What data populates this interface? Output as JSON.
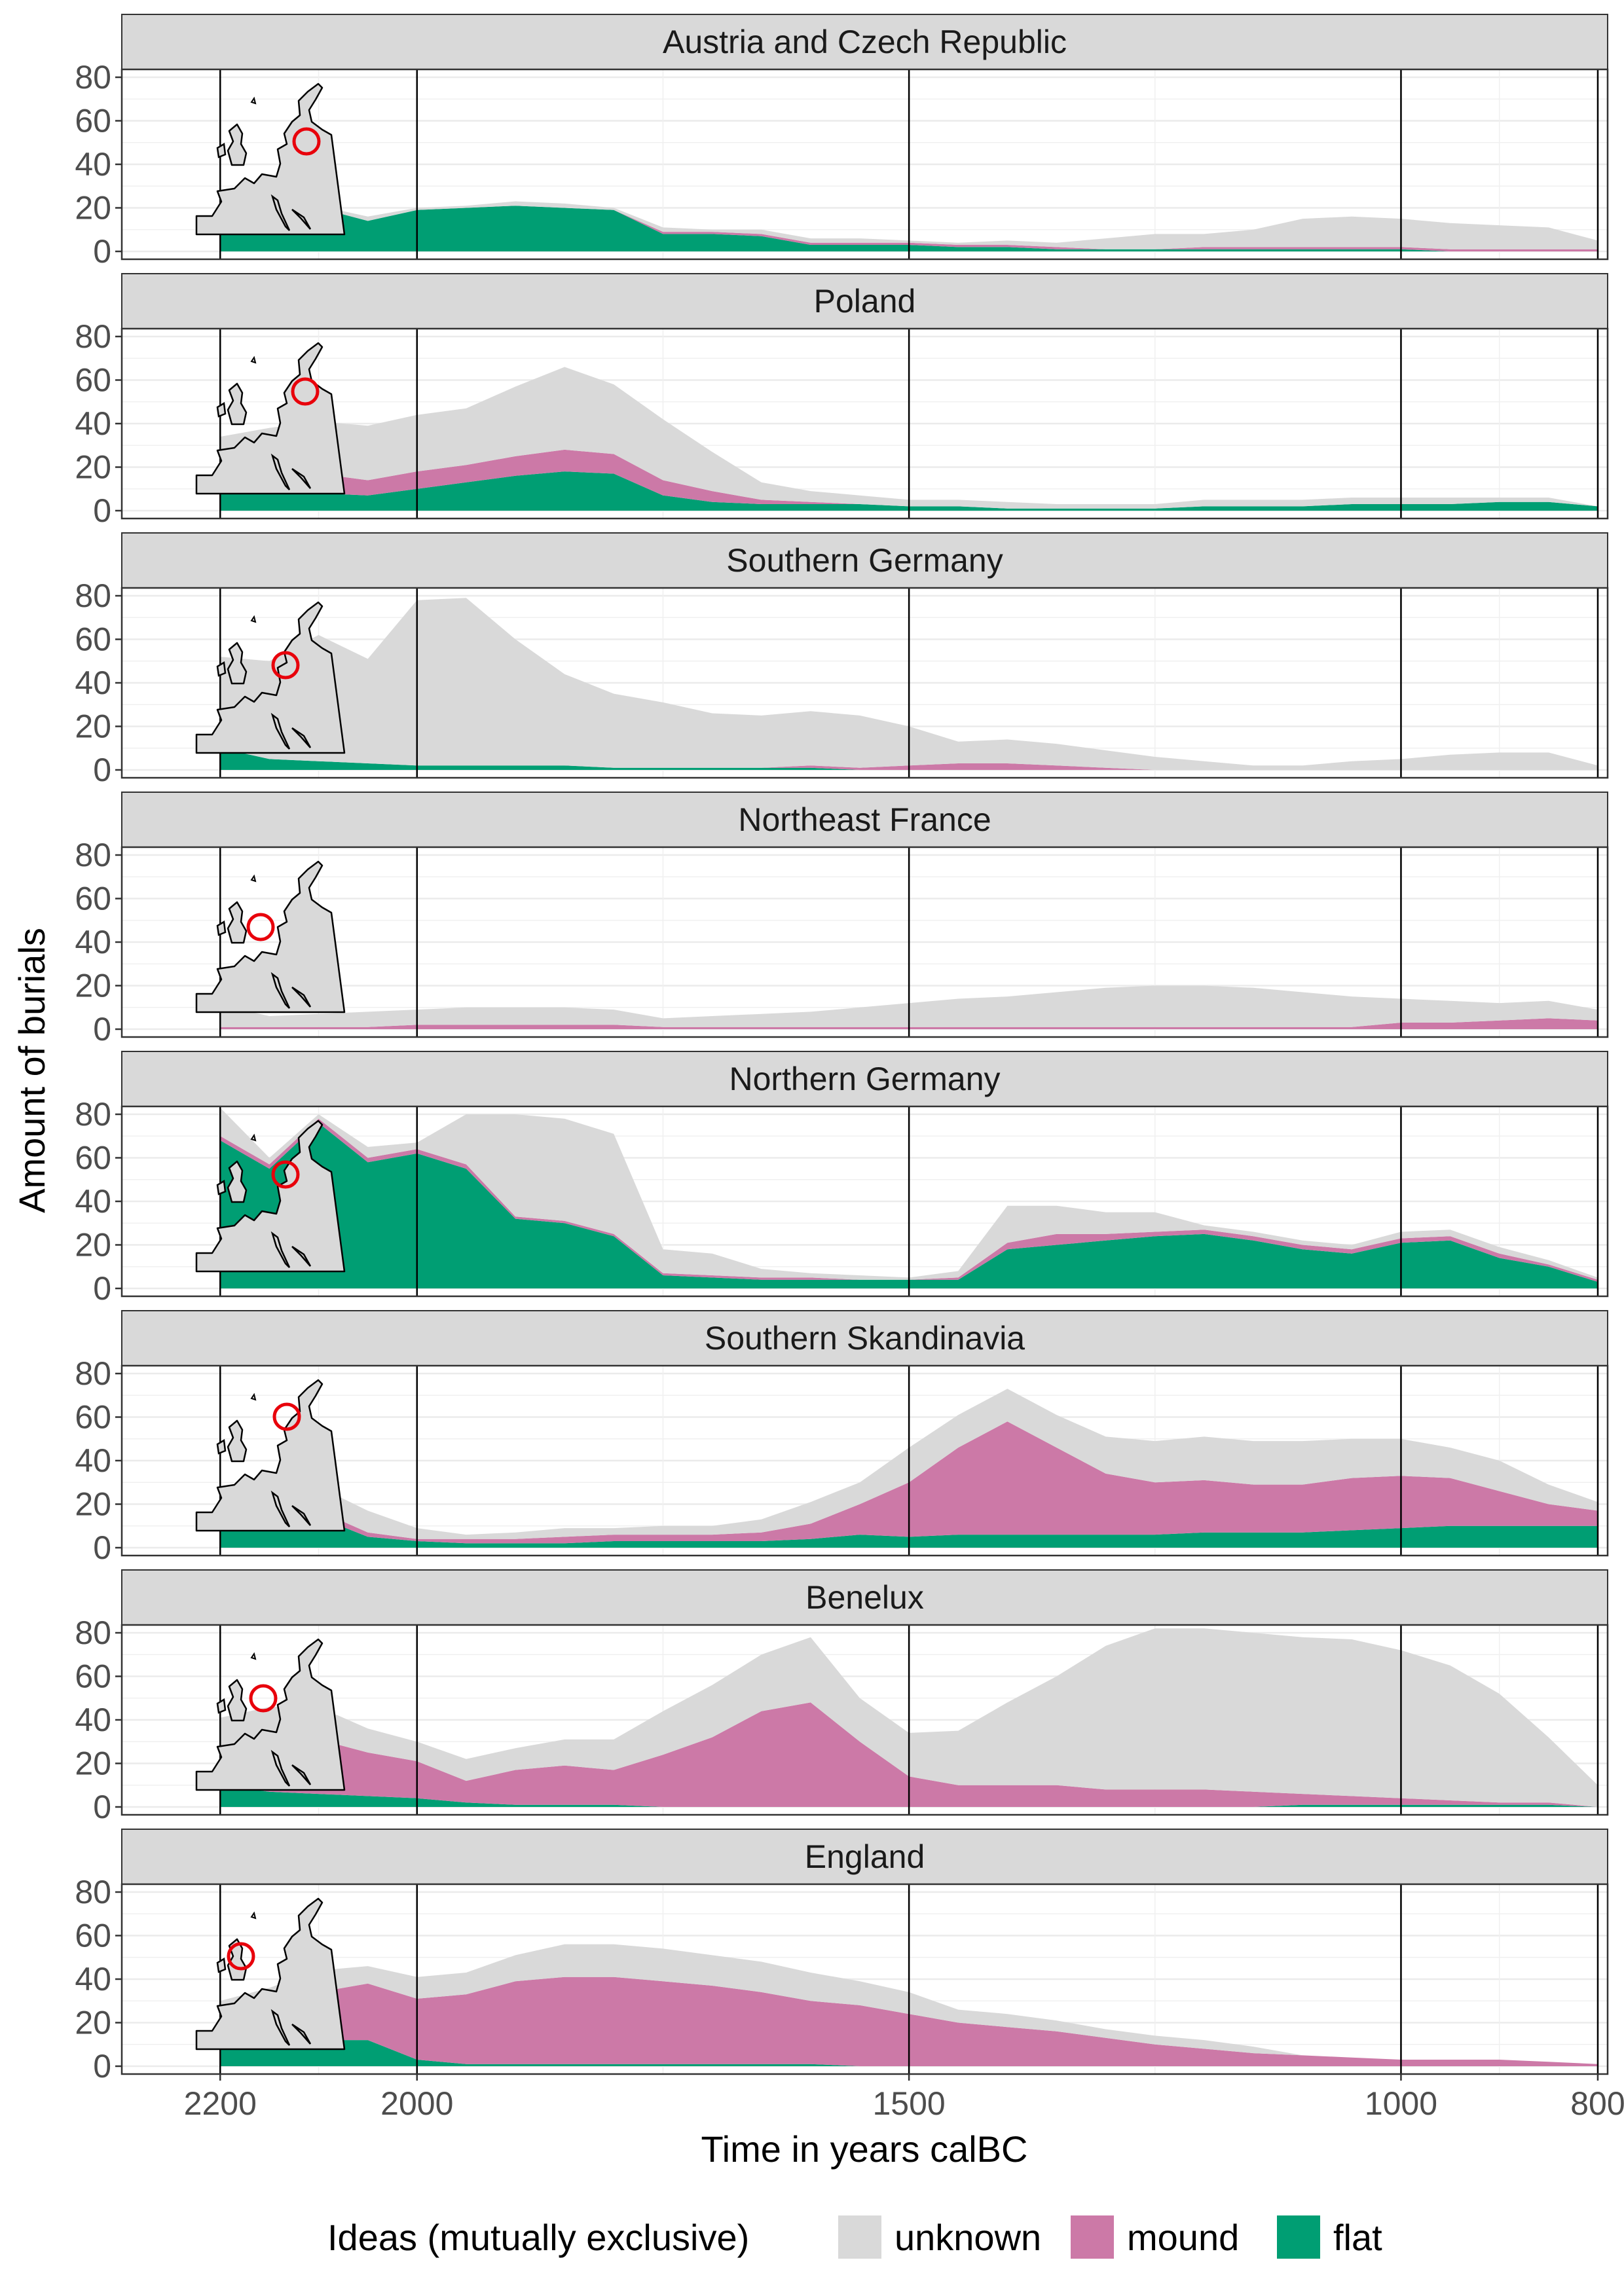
{
  "chart_data": {
    "type": "area",
    "stacked": true,
    "xlabel": "Time in years calBC",
    "ylabel": "Amount of burials",
    "xlim": [
      2300,
      790
    ],
    "x_reversed": true,
    "ylim": [
      0,
      80
    ],
    "x_ticks": [
      2200,
      2000,
      1500,
      1000,
      800
    ],
    "y_ticks": [
      0,
      20,
      40,
      60,
      80
    ],
    "x_tick_labels": [
      "2200",
      "2000",
      "1500",
      "1000",
      "800"
    ],
    "y_tick_labels": [
      "0",
      "20",
      "40",
      "60",
      "80"
    ],
    "x_reference_lines": [
      2200,
      2000,
      1500,
      1000,
      800
    ],
    "grid": true,
    "legend": {
      "title": "Ideas (mutually exclusive)",
      "position": "bottom",
      "entries": [
        {
          "name": "unknown",
          "color": "#d9d9d9"
        },
        {
          "name": "mound",
          "color": "#cc79a7"
        },
        {
          "name": "flat",
          "color": "#009e73"
        }
      ]
    },
    "x": [
      2200,
      2150,
      2100,
      2050,
      2000,
      1950,
      1900,
      1850,
      1800,
      1750,
      1700,
      1650,
      1600,
      1550,
      1500,
      1450,
      1400,
      1350,
      1300,
      1250,
      1200,
      1150,
      1100,
      1050,
      1000,
      950,
      900,
      850,
      800
    ],
    "panels": [
      {
        "title": "Austria and Czech Republic",
        "map_marker": "central",
        "series": [
          {
            "name": "flat",
            "values": [
              24,
              20,
              20,
              14,
              19,
              20,
              21,
              20,
              19,
              8,
              8,
              7,
              3,
              3,
              3,
              2,
              2,
              1,
              1,
              1,
              1,
              1,
              1,
              1,
              1,
              0,
              0,
              0,
              0
            ]
          },
          {
            "name": "mound",
            "values": [
              0,
              0,
              0,
              0,
              0,
              0,
              0,
              0,
              0,
              1,
              1,
              1,
              1,
              1,
              1,
              1,
              1,
              1,
              0,
              0,
              1,
              1,
              1,
              1,
              1,
              1,
              1,
              1,
              1
            ]
          },
          {
            "name": "unknown",
            "values": [
              2,
              1,
              1,
              2,
              1,
              1,
              2,
              2,
              1,
              2,
              1,
              2,
              2,
              2,
              1,
              1,
              2,
              2,
              5,
              7,
              6,
              8,
              13,
              14,
              13,
              12,
              11,
              10,
              4
            ]
          }
        ]
      },
      {
        "title": "Poland",
        "map_marker": "poland",
        "series": [
          {
            "name": "flat",
            "values": [
              8,
              8,
              8,
              7,
              10,
              13,
              16,
              18,
              17,
              7,
              4,
              3,
              3,
              3,
              2,
              2,
              1,
              1,
              1,
              1,
              2,
              2,
              2,
              3,
              3,
              3,
              4,
              4,
              2
            ]
          },
          {
            "name": "mound",
            "values": [
              9,
              9,
              9,
              7,
              8,
              8,
              9,
              10,
              9,
              7,
              5,
              2,
              1,
              0,
              0,
              0,
              0,
              0,
              0,
              0,
              0,
              0,
              0,
              0,
              0,
              0,
              0,
              0,
              0
            ]
          },
          {
            "name": "unknown",
            "values": [
              17,
              21,
              24,
              25,
              26,
              26,
              32,
              38,
              32,
              28,
              18,
              8,
              5,
              4,
              3,
              3,
              3,
              2,
              2,
              2,
              3,
              3,
              3,
              3,
              3,
              3,
              2,
              2,
              0
            ]
          }
        ]
      },
      {
        "title": "Southern Germany",
        "map_marker": "south-germany",
        "series": [
          {
            "name": "flat",
            "values": [
              10,
              5,
              4,
              3,
              2,
              2,
              2,
              2,
              1,
              1,
              1,
              1,
              1,
              0,
              0,
              0,
              0,
              0,
              0,
              0,
              0,
              0,
              0,
              0,
              0,
              0,
              0,
              0,
              0
            ]
          },
          {
            "name": "mound",
            "values": [
              0,
              0,
              0,
              0,
              0,
              0,
              0,
              0,
              0,
              0,
              0,
              0,
              1,
              1,
              2,
              3,
              3,
              2,
              1,
              0,
              0,
              0,
              0,
              0,
              0,
              0,
              0,
              0,
              0
            ]
          },
          {
            "name": "unknown",
            "values": [
              42,
              45,
              58,
              48,
              76,
              77,
              58,
              42,
              34,
              30,
              25,
              24,
              25,
              24,
              18,
              10,
              11,
              10,
              8,
              6,
              4,
              2,
              2,
              4,
              5,
              7,
              8,
              8,
              2
            ]
          }
        ]
      },
      {
        "title": "Northeast France",
        "map_marker": "northeast-france",
        "series": [
          {
            "name": "flat",
            "values": [
              0,
              0,
              0,
              0,
              0,
              0,
              0,
              0,
              0,
              0,
              0,
              0,
              0,
              0,
              0,
              0,
              0,
              0,
              0,
              0,
              0,
              0,
              0,
              0,
              0,
              0,
              0,
              0,
              0
            ]
          },
          {
            "name": "mound",
            "values": [
              1,
              1,
              1,
              1,
              2,
              2,
              2,
              2,
              2,
              1,
              1,
              1,
              1,
              1,
              1,
              1,
              1,
              1,
              1,
              1,
              1,
              1,
              1,
              1,
              3,
              3,
              4,
              5,
              4
            ]
          },
          {
            "name": "unknown",
            "values": [
              10,
              5,
              6,
              7,
              7,
              8,
              8,
              8,
              7,
              4,
              5,
              6,
              7,
              9,
              11,
              13,
              14,
              16,
              18,
              19,
              19,
              18,
              16,
              14,
              11,
              10,
              8,
              8,
              5
            ]
          }
        ]
      },
      {
        "title": "Northern Germany",
        "map_marker": "north-germany",
        "series": [
          {
            "name": "flat",
            "values": [
              68,
              55,
              76,
              58,
              62,
              55,
              32,
              30,
              24,
              6,
              5,
              4,
              4,
              4,
              4,
              4,
              18,
              20,
              22,
              24,
              25,
              22,
              18,
              16,
              21,
              22,
              14,
              10,
              3
            ]
          },
          {
            "name": "mound",
            "values": [
              2,
              2,
              2,
              2,
              2,
              2,
              1,
              1,
              1,
              1,
              1,
              1,
              1,
              0,
              0,
              1,
              3,
              5,
              3,
              2,
              2,
              2,
              2,
              2,
              2,
              2,
              2,
              1,
              1
            ]
          },
          {
            "name": "unknown",
            "values": [
              13,
              3,
              2,
              5,
              3,
              23,
              47,
              47,
              46,
              11,
              10,
              4,
              2,
              2,
              1,
              3,
              17,
              13,
              10,
              9,
              2,
              2,
              2,
              2,
              3,
              3,
              3,
              2,
              1
            ]
          }
        ]
      },
      {
        "title": "Southern Skandinavia",
        "map_marker": "skandinavia",
        "series": [
          {
            "name": "flat",
            "values": [
              14,
              15,
              14,
              5,
              3,
              2,
              2,
              2,
              3,
              3,
              3,
              3,
              4,
              6,
              5,
              6,
              6,
              6,
              6,
              6,
              7,
              7,
              7,
              8,
              9,
              10,
              10,
              10,
              10
            ]
          },
          {
            "name": "mound",
            "values": [
              3,
              3,
              3,
              2,
              1,
              2,
              2,
              3,
              3,
              3,
              3,
              4,
              7,
              14,
              25,
              40,
              52,
              40,
              28,
              24,
              24,
              22,
              22,
              24,
              24,
              22,
              16,
              10,
              7
            ]
          },
          {
            "name": "unknown",
            "values": [
              10,
              10,
              11,
              10,
              5,
              2,
              3,
              4,
              3,
              4,
              4,
              6,
              10,
              10,
              16,
              15,
              15,
              15,
              17,
              19,
              20,
              20,
              20,
              18,
              17,
              14,
              14,
              9,
              4
            ]
          }
        ]
      },
      {
        "title": "Benelux",
        "map_marker": "benelux",
        "series": [
          {
            "name": "flat",
            "values": [
              10,
              7,
              6,
              5,
              4,
              2,
              1,
              1,
              1,
              0,
              0,
              0,
              0,
              0,
              0,
              0,
              0,
              0,
              0,
              0,
              0,
              0,
              1,
              1,
              1,
              1,
              1,
              1,
              0
            ]
          },
          {
            "name": "mound",
            "values": [
              18,
              24,
              25,
              20,
              17,
              10,
              16,
              18,
              16,
              24,
              32,
              44,
              48,
              30,
              14,
              10,
              10,
              10,
              8,
              8,
              8,
              7,
              5,
              4,
              3,
              2,
              1,
              1,
              0
            ]
          },
          {
            "name": "unknown",
            "values": [
              13,
              15,
              15,
              11,
              9,
              10,
              10,
              12,
              14,
              20,
              24,
              26,
              30,
              20,
              20,
              25,
              38,
              50,
              66,
              74,
              74,
              73,
              72,
              72,
              68,
              62,
              50,
              30,
              10
            ]
          }
        ]
      },
      {
        "title": "England",
        "map_marker": "england",
        "series": [
          {
            "name": "flat",
            "values": [
              12,
              10,
              12,
              12,
              3,
              1,
              1,
              1,
              1,
              1,
              1,
              1,
              1,
              0,
              0,
              0,
              0,
              0,
              0,
              0,
              0,
              0,
              0,
              0,
              0,
              0,
              0,
              0,
              0
            ]
          },
          {
            "name": "mound",
            "values": [
              10,
              18,
              22,
              26,
              28,
              32,
              38,
              40,
              40,
              38,
              36,
              33,
              29,
              28,
              24,
              20,
              18,
              16,
              13,
              10,
              8,
              6,
              5,
              4,
              3,
              3,
              3,
              2,
              1
            ]
          },
          {
            "name": "unknown",
            "values": [
              8,
              8,
              10,
              8,
              10,
              10,
              12,
              15,
              15,
              15,
              14,
              14,
              13,
              11,
              10,
              6,
              6,
              5,
              4,
              4,
              4,
              3,
              0,
              0,
              0,
              0,
              0,
              0,
              0
            ]
          }
        ]
      }
    ]
  }
}
